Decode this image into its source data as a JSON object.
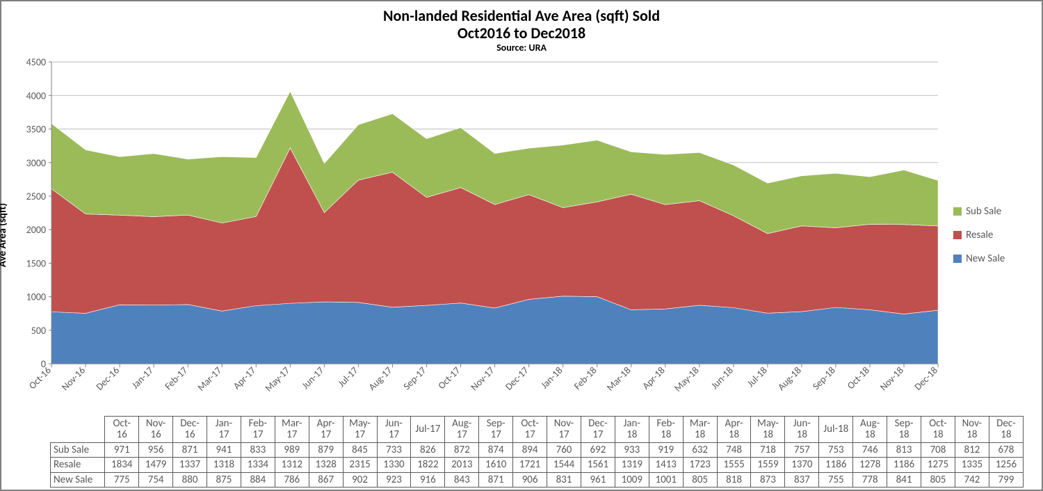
{
  "title": {
    "line1": "Non-landed Residential Ave Area (sqft) Sold",
    "line2": "Oct2016 to Dec2018",
    "source": "Source: URA",
    "fontsize_main": 22,
    "fontsize_src": 14
  },
  "chart": {
    "type": "stacked-area",
    "ylabel": "Ave Area (sqft)",
    "ylabel_fontsize": 15,
    "ylim": [
      0,
      4500
    ],
    "ytick_step": 500,
    "tick_fontsize": 14,
    "gridline_color": "#bfbfbf",
    "axis_color": "#808080",
    "background": "#ffffff",
    "categories": [
      "Oct-16",
      "Nov-16",
      "Dec-16",
      "Jan-17",
      "Feb-17",
      "Mar-17",
      "Apr-17",
      "May-17",
      "Jun-17",
      "Jul-17",
      "Aug-17",
      "Sep-17",
      "Oct-17",
      "Nov-17",
      "Dec-17",
      "Jan-18",
      "Feb-18",
      "Mar-18",
      "Apr-18",
      "May-18",
      "Jun-18",
      "Jul-18",
      "Aug-18",
      "Sep-18",
      "Oct-18",
      "Nov-18",
      "Dec-18"
    ],
    "series": [
      {
        "name": "New Sale",
        "color": "#4f81bd",
        "values": [
          775,
          754,
          880,
          875,
          884,
          786,
          867,
          902,
          923,
          916,
          843,
          871,
          906,
          831,
          961,
          1009,
          1001,
          805,
          818,
          873,
          837,
          755,
          778,
          841,
          805,
          742,
          799
        ]
      },
      {
        "name": "Resale",
        "color": "#c0504d",
        "values": [
          1834,
          1479,
          1337,
          1318,
          1334,
          1312,
          1328,
          2315,
          1330,
          1822,
          2013,
          1610,
          1721,
          1544,
          1561,
          1319,
          1413,
          1723,
          1555,
          1559,
          1370,
          1186,
          1278,
          1186,
          1275,
          1335,
          1256
        ]
      },
      {
        "name": "Sub Sale",
        "color": "#9bbb59",
        "values": [
          971,
          956,
          871,
          941,
          833,
          989,
          879,
          845,
          733,
          826,
          872,
          874,
          894,
          760,
          692,
          933,
          919,
          632,
          748,
          718,
          757,
          753,
          746,
          813,
          708,
          812,
          678
        ]
      }
    ],
    "legend_order": [
      "Sub Sale",
      "Resale",
      "New Sale"
    ],
    "table_row_order": [
      "Sub Sale",
      "Resale",
      "New Sale"
    ]
  },
  "table_header_split": [
    [
      "Oct-",
      "16"
    ],
    [
      "Nov-",
      "16"
    ],
    [
      "Dec-",
      "16"
    ],
    [
      "Jan-",
      "17"
    ],
    [
      "Feb-",
      "17"
    ],
    [
      "Mar-",
      "17"
    ],
    [
      "Apr-",
      "17"
    ],
    [
      "May-",
      "17"
    ],
    [
      "Jun-",
      "17"
    ],
    [
      "Jul-17",
      ""
    ],
    [
      "Aug-",
      "17"
    ],
    [
      "Sep-",
      "17"
    ],
    [
      "Oct-",
      "17"
    ],
    [
      "Nov-",
      "17"
    ],
    [
      "Dec-",
      "17"
    ],
    [
      "Jan-",
      "18"
    ],
    [
      "Feb-",
      "18"
    ],
    [
      "Mar-",
      "18"
    ],
    [
      "Apr-",
      "18"
    ],
    [
      "May-",
      "18"
    ],
    [
      "Jun-",
      "18"
    ],
    [
      "Jul-18",
      ""
    ],
    [
      "Aug-",
      "18"
    ],
    [
      "Sep-",
      "18"
    ],
    [
      "Oct-",
      "18"
    ],
    [
      "Nov-",
      "18"
    ],
    [
      "Dec-",
      "18"
    ]
  ]
}
